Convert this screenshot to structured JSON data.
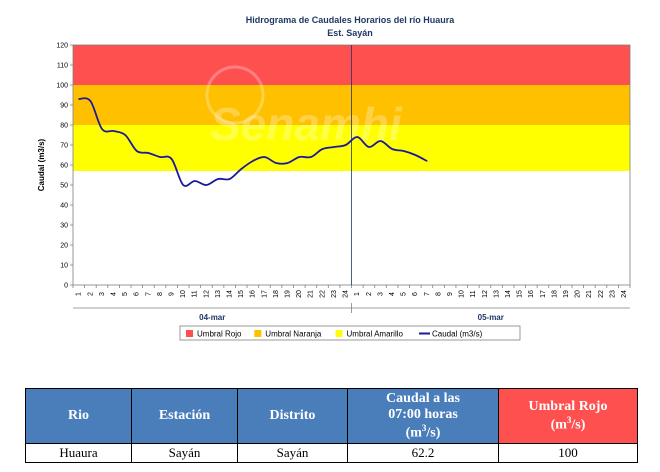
{
  "chart_data": {
    "type": "line",
    "title": "Hidrograma de Caudales Horarios del río Huaura",
    "subtitle": "Est. Sayán",
    "ylabel": "Caudal (m3/s)",
    "ylim": [
      0,
      120
    ],
    "yticks": [
      "0",
      "10",
      "20",
      "30",
      "40",
      "50",
      "60",
      "70",
      "80",
      "90",
      "100",
      "110",
      "120"
    ],
    "x_tick_labels": [
      "1",
      "2",
      "3",
      "4",
      "5",
      "6",
      "7",
      "8",
      "9",
      "10",
      "11",
      "12",
      "13",
      "14",
      "15",
      "16",
      "17",
      "18",
      "19",
      "20",
      "21",
      "22",
      "23",
      "24",
      "1",
      "2",
      "3",
      "4",
      "5",
      "6",
      "7",
      "8",
      "9",
      "10",
      "11",
      "12",
      "13",
      "14",
      "15",
      "16",
      "17",
      "18",
      "19",
      "20",
      "21",
      "22",
      "23",
      "24"
    ],
    "day_labels": [
      "04-mar",
      "05-mar"
    ],
    "watermark": "Senamhi",
    "bands": [
      {
        "name": "Umbral Amarillo",
        "from": 57,
        "to": 80,
        "color": "#ffff00"
      },
      {
        "name": "Umbral Naranja",
        "from": 80,
        "to": 100,
        "color": "#ffc000"
      },
      {
        "name": "Umbral Rojo",
        "from": 100,
        "to": 120,
        "color": "#ff5050"
      }
    ],
    "legend": [
      {
        "label": "Umbral Rojo",
        "color": "#ff5050",
        "kind": "box"
      },
      {
        "label": "Umbral Naranja",
        "color": "#ffc000",
        "kind": "box"
      },
      {
        "label": "Umbral Amarillo",
        "color": "#ffff00",
        "kind": "box"
      },
      {
        "label": "Caudal (m3/s)",
        "color": "#1a1a9c",
        "kind": "line"
      }
    ],
    "series": [
      {
        "name": "Caudal (m3/s)",
        "color": "#1a1a9c",
        "values": [
          93,
          92,
          78,
          77,
          75,
          67,
          66,
          64,
          63,
          50,
          52,
          50,
          53,
          53,
          58,
          62,
          64,
          61,
          61,
          64,
          64,
          68,
          69,
          70,
          74,
          69,
          72,
          68,
          67,
          65,
          62
        ]
      }
    ]
  },
  "table": {
    "headers": {
      "rio": "Rio",
      "estacion": "Estación",
      "distrito": "Distrito",
      "caudal_line1": "Caudal a las",
      "caudal_line2": "07:00 horas",
      "caudal_unit_pre": "(m",
      "caudal_unit_sup": "3",
      "caudal_unit_post": "/s)",
      "umbral_line1": "Umbral Rojo",
      "umbral_unit_pre": "(m",
      "umbral_unit_sup": "3",
      "umbral_unit_post": "/s)"
    },
    "row": {
      "rio": "Huaura",
      "estacion": "Sayán",
      "distrito": "Sayán",
      "caudal": "62.2",
      "umbral": "100"
    },
    "colors": {
      "header_blue": "#4a7ebb",
      "header_red": "#ff5050"
    }
  }
}
